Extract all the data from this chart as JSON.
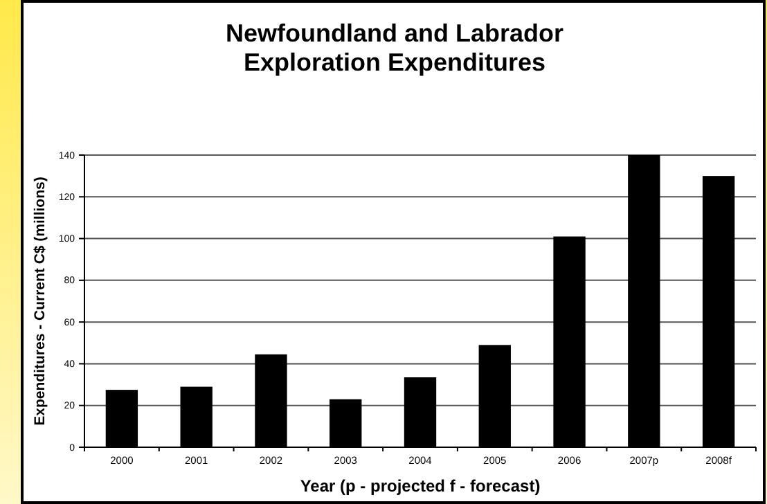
{
  "chart_data": {
    "type": "bar",
    "title": "Newfoundland and Labrador\nExploration Expenditures",
    "xlabel": "Year (p - projected  f - forecast)",
    "ylabel": "Expenditures - Current C$ (millions)",
    "categories": [
      "2000",
      "2001",
      "2002",
      "2003",
      "2004",
      "2005",
      "2006",
      "2007p",
      "2008f"
    ],
    "values": [
      27.5,
      29,
      44.5,
      23,
      33.5,
      49,
      101,
      140,
      130
    ],
    "color": "#000000",
    "ylim": [
      0,
      140
    ],
    "yticks": [
      0,
      20,
      40,
      60,
      80,
      100,
      120,
      140
    ],
    "grid": "y"
  }
}
